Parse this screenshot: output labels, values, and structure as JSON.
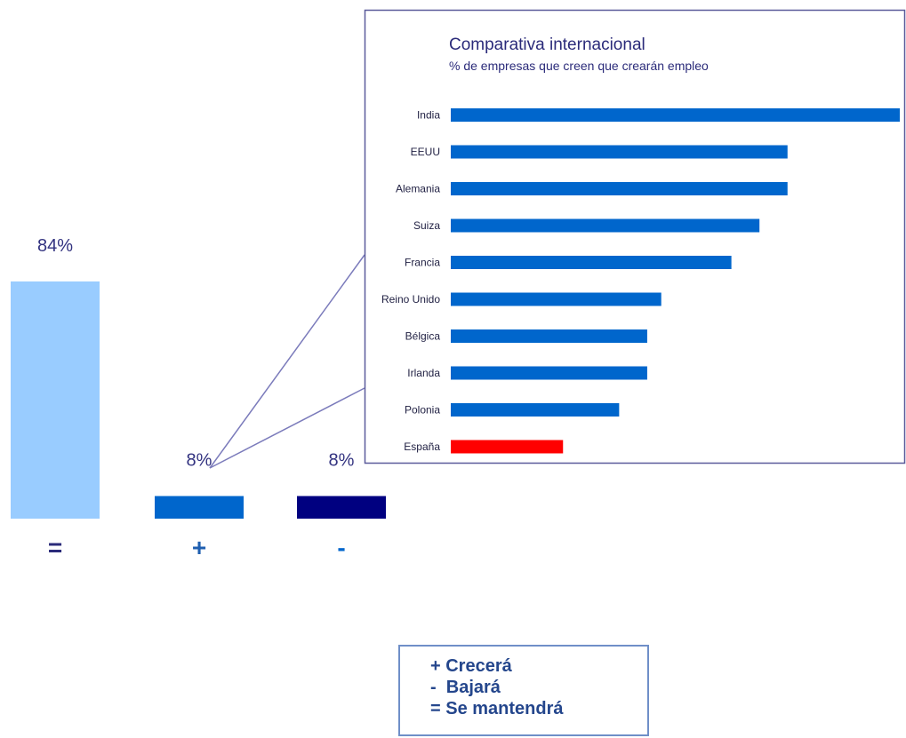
{
  "chart_data": [
    {
      "type": "bar",
      "categories": [
        "=",
        "+",
        "-"
      ],
      "values": [
        84,
        8,
        8
      ],
      "value_labels": [
        "84%",
        "8%",
        "8%"
      ],
      "colors": [
        "#99ccff",
        "#0066cc",
        "#000080"
      ],
      "ylim": [
        0,
        100
      ]
    },
    {
      "type": "bar",
      "orientation": "horizontal",
      "title": "Comparativa internacional",
      "subtitle": "% de empresas que creen que crearán empleo",
      "categories": [
        "India",
        "EEUU",
        "Alemania",
        "Suiza",
        "Francia",
        "Reino Unido",
        "Bélgica",
        "Irlanda",
        "Polonia",
        "España"
      ],
      "values": [
        32,
        24,
        24,
        22,
        20,
        15,
        14,
        14,
        12,
        8
      ],
      "colors": [
        "#0066cc",
        "#0066cc",
        "#0066cc",
        "#0066cc",
        "#0066cc",
        "#0066cc",
        "#0066cc",
        "#0066cc",
        "#0066cc",
        "#ff0000"
      ],
      "xlim": [
        0,
        32
      ],
      "grid": false
    }
  ],
  "legend": {
    "items": [
      "+ Crecerá",
      "-  Bajará",
      "= Se mantendrá"
    ]
  }
}
